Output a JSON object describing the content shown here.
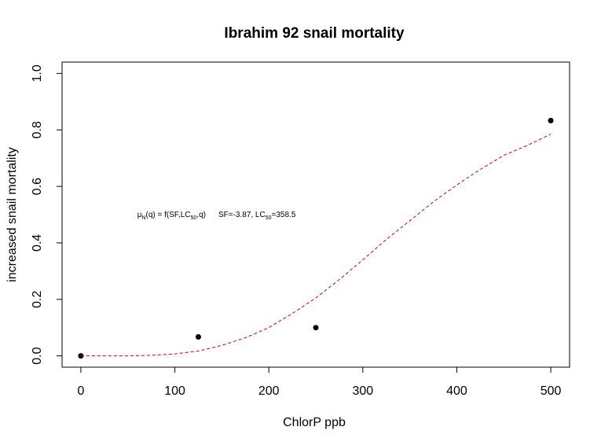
{
  "chart_data": {
    "type": "scatter",
    "title": "Ibrahim 92 snail mortality",
    "xlabel": "ChlorP ppb",
    "ylabel": "increased snail mortality",
    "xlim": [
      -20,
      520
    ],
    "ylim": [
      -0.04,
      1.04
    ],
    "x_ticks": [
      0,
      100,
      200,
      300,
      400,
      500
    ],
    "x_tick_labels": [
      "0",
      "100",
      "200",
      "300",
      "400",
      "500"
    ],
    "y_ticks": [
      0.0,
      0.2,
      0.4,
      0.6,
      0.8,
      1.0
    ],
    "y_tick_labels": [
      "0.0",
      "0.2",
      "0.4",
      "0.6",
      "0.8",
      "1.0"
    ],
    "grid": false,
    "series": [
      {
        "kind": "points",
        "color": "#000000",
        "x": [
          0,
          125,
          250,
          500
        ],
        "y": [
          0.0,
          0.067,
          0.1,
          0.833
        ]
      },
      {
        "kind": "curve",
        "style": "dashed",
        "color": "#cc0000",
        "x": [
          0,
          25,
          50,
          75,
          100,
          125,
          150,
          175,
          200,
          225,
          250,
          275,
          300,
          325,
          350,
          375,
          400,
          425,
          450,
          475,
          500
        ],
        "y": [
          0.0,
          0.0,
          0.0,
          0.002,
          0.007,
          0.017,
          0.037,
          0.064,
          0.1,
          0.15,
          0.205,
          0.27,
          0.34,
          0.412,
          0.478,
          0.545,
          0.605,
          0.66,
          0.71,
          0.745,
          0.785
        ]
      }
    ],
    "annotation": {
      "x": 60,
      "y": 0.5,
      "mu": "μ",
      "mu_sub": "N",
      "formula_a": "(q) = f(SF,LC",
      "formula_sub": "50",
      "formula_b": ",q)",
      "params_a": "SF=-3.87, LC",
      "params_sub": "50",
      "params_b": "=358.5"
    }
  }
}
